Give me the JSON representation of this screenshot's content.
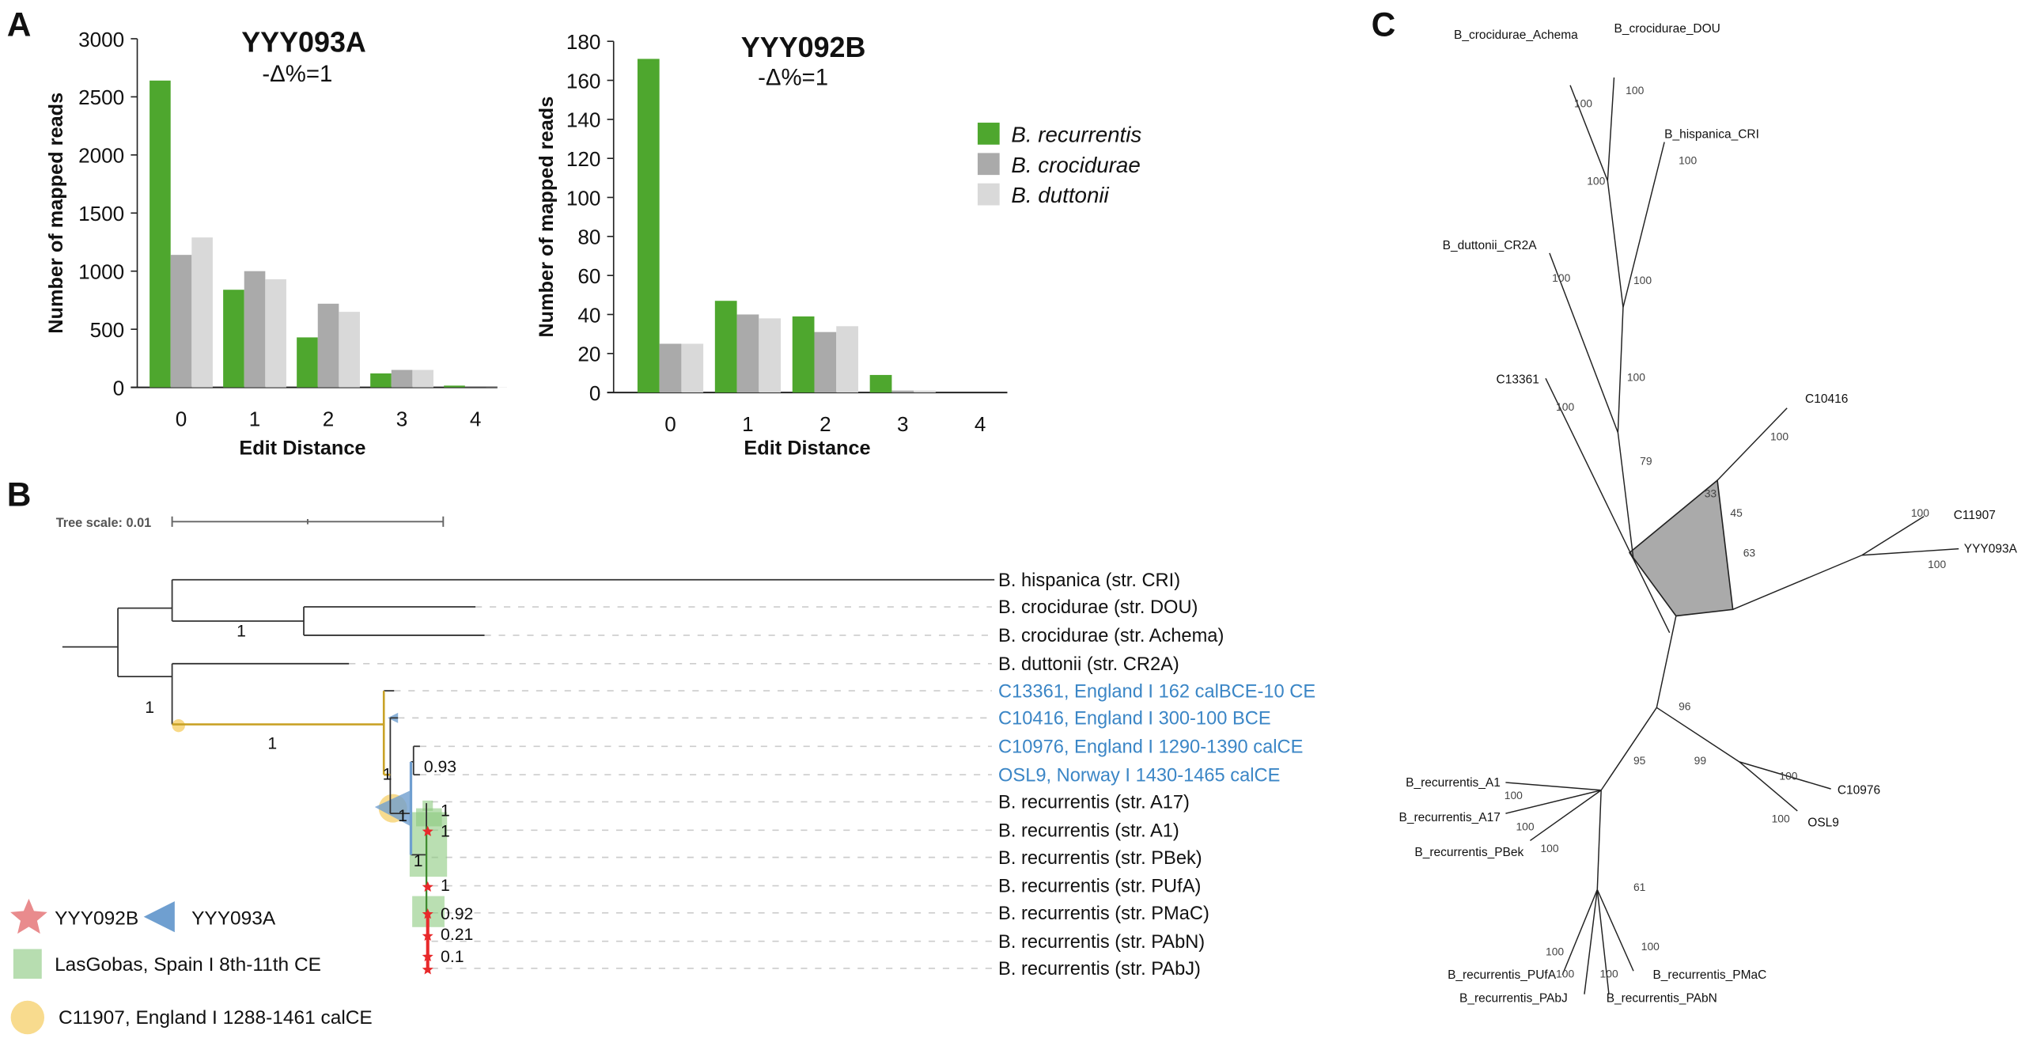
{
  "panels": {
    "a": "A",
    "b": "B",
    "c": "C"
  },
  "colors": {
    "recurrentis": "#4ea72e",
    "crocidurae": "#aaaaaa",
    "duttonii": "#d9d9d9",
    "ancient_label": "#3b86c6",
    "star": "#e8292b",
    "lasgobas": "#8cc97f",
    "c11907": "#f7d57a",
    "yyy093a": "#6f9fd0"
  },
  "chart_data": [
    {
      "type": "bar",
      "title": "YYY093A",
      "subtitle": "-Δ%=1",
      "xlabel": "Edit Distance",
      "ylabel": "Number of mapped reads",
      "categories": [
        "0",
        "1",
        "2",
        "3",
        "4"
      ],
      "ylim": [
        0,
        3000
      ],
      "yticks": [
        "0",
        "500",
        "1000",
        "1500",
        "2000",
        "2500",
        "3000"
      ],
      "grid": false,
      "series": [
        {
          "name": "B. recurrentis",
          "values": [
            2640,
            840,
            430,
            120,
            15
          ]
        },
        {
          "name": "B. crocidurae",
          "values": [
            1140,
            1000,
            720,
            150,
            2
          ]
        },
        {
          "name": "B. duttonii",
          "values": [
            1290,
            930,
            650,
            150,
            2
          ]
        }
      ]
    },
    {
      "type": "bar",
      "title": "YYY092B",
      "subtitle": "-Δ%=1",
      "xlabel": "Edit Distance",
      "ylabel": "Number of mapped reads",
      "categories": [
        "0",
        "1",
        "2",
        "3",
        "4"
      ],
      "ylim": [
        0,
        180
      ],
      "yticks": [
        "0",
        "20",
        "40",
        "60",
        "80",
        "100",
        "120",
        "140",
        "160",
        "180"
      ],
      "grid": false,
      "legend_position": "right",
      "series": [
        {
          "name": "B. recurrentis",
          "values": [
            171,
            47,
            39,
            9,
            0
          ]
        },
        {
          "name": "B. crocidurae",
          "values": [
            25,
            40,
            31,
            1,
            0
          ]
        },
        {
          "name": "B. duttonii",
          "values": [
            25,
            38,
            34,
            1,
            0
          ]
        }
      ]
    }
  ],
  "tree_b": {
    "scale_label": "Tree scale: 0.01",
    "leaves": [
      {
        "label": "B. hispanica (str. CRI)",
        "ancient": false
      },
      {
        "label": "B. crocidurae (str. DOU)",
        "ancient": false
      },
      {
        "label": "B. crocidurae (str. Achema)",
        "ancient": false
      },
      {
        "label": "B. duttonii (str. CR2A)",
        "ancient": false
      },
      {
        "label": "C13361, England I 162 calBCE-10 CE",
        "ancient": true
      },
      {
        "label": "C10416, England I 300-100 BCE",
        "ancient": true
      },
      {
        "label": "C10976, England I 1290-1390 calCE",
        "ancient": true
      },
      {
        "label": "OSL9, Norway I 1430-1465 calCE",
        "ancient": true
      },
      {
        "label": "B. recurrentis (str. A17)",
        "ancient": false
      },
      {
        "label": "B. recurrentis (str. A1)",
        "ancient": false
      },
      {
        "label": "B. recurrentis (str. PBek)",
        "ancient": false
      },
      {
        "label": "B. recurrentis (str. PUfA)",
        "ancient": false
      },
      {
        "label": "B. recurrentis (str. PMaC)",
        "ancient": false
      },
      {
        "label": "B. recurrentis (str. PAbN)",
        "ancient": false
      },
      {
        "label": "B. recurrentis (str. PAbJ)",
        "ancient": false
      }
    ],
    "support": [
      "1",
      "1",
      "1",
      "1",
      "0.93",
      "1",
      "1",
      "1",
      "1",
      "1",
      "0.92",
      "0.21",
      "0.1"
    ],
    "legend": [
      {
        "label": "YYY092B",
        "icon": "star"
      },
      {
        "label": "YYY093A",
        "icon": "triangle-left"
      },
      {
        "label": "LasGobas, Spain I 8th-11th CE",
        "icon": "square"
      },
      {
        "label": "C11907, England I 1288-1461 calCE",
        "icon": "circle"
      }
    ]
  },
  "network_c": {
    "tips": [
      "B_crocidurae_Achema",
      "B_crocidurae_DOU",
      "B_hispanica_CRI",
      "B_duttonii_CR2A",
      "C13361",
      "C10416",
      "C11907",
      "YYY093A",
      "C10976",
      "OSL9",
      "B_recurrentis_A1",
      "B_recurrentis_A17",
      "B_recurrentis_PBek",
      "B_recurrentis_PUfA",
      "B_recurrentis_PAbJ",
      "B_recurrentis_PAbN",
      "B_recurrentis_PMaC"
    ],
    "support": [
      "100",
      "100",
      "100",
      "100",
      "100",
      "100",
      "100",
      "100",
      "79",
      "33",
      "45",
      "100",
      "63",
      "100",
      "100",
      "96",
      "99",
      "95",
      "100",
      "100",
      "100",
      "61",
      "100",
      "100",
      "100",
      "100",
      "100",
      "100"
    ]
  }
}
